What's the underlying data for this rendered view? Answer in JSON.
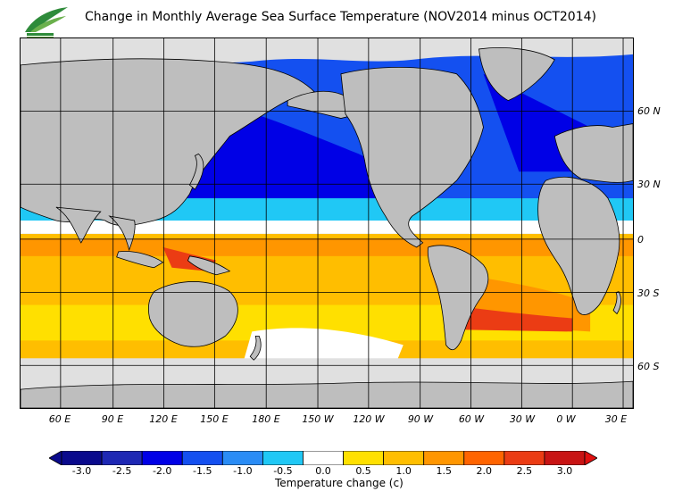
{
  "title": "Change in Monthly Average Sea Surface Temperature (NOV2014 minus OCT2014)",
  "latitude_labels": [
    "60 N",
    "30 N",
    "0",
    "30 S",
    "60 S"
  ],
  "longitude_labels": [
    "60 E",
    "90 E",
    "120 E",
    "150 E",
    "180 E",
    "150 W",
    "120 W",
    "90 W",
    "60 W",
    "30 W",
    "0 W",
    "30 E"
  ],
  "colorbar": {
    "tick_labels": [
      "-3.0",
      "-2.5",
      "-2.0",
      "-1.5",
      "-1.0",
      "-0.5",
      "0.0",
      "0.5",
      "1.0",
      "1.5",
      "2.0",
      "2.5",
      "3.0"
    ],
    "colors": [
      "#0a0a8c",
      "#1e28b4",
      "#0000e6",
      "#1450f0",
      "#2a8cf5",
      "#20c8f5",
      "#ffffff",
      "#ffe000",
      "#ffbe00",
      "#ff9600",
      "#ff6400",
      "#eb3c14",
      "#c81414"
    ],
    "label": "Temperature change  (c)"
  },
  "colors": {
    "land": "#bebebe",
    "ice": "#e0e0e0",
    "coast": "#000000"
  }
}
